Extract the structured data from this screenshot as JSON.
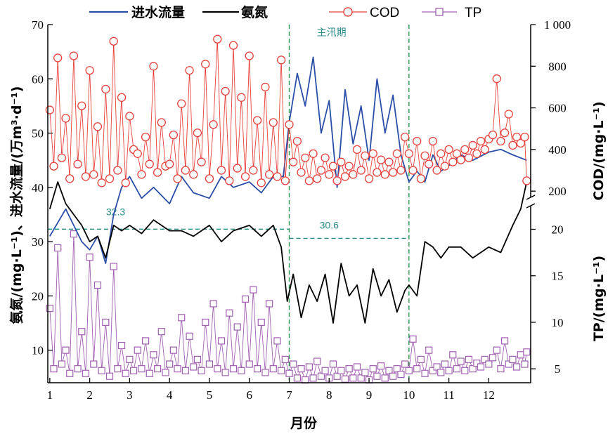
{
  "chart_data": {
    "type": "line",
    "title": "",
    "xlabel": "月份",
    "ylabel_left": "氨氮/(mg·L⁻¹)、进水流量/(万m³·d⁻¹)",
    "ylabel_right_upper": "COD/(mg·L⁻¹)",
    "ylabel_right_lower": "TP/(mg·L⁻¹)",
    "x_ticks": [
      "1",
      "2",
      "3",
      "4",
      "5",
      "6",
      "7",
      "8",
      "9",
      "10",
      "11",
      "12"
    ],
    "xlim": [
      0.95,
      13.05
    ],
    "y_left": {
      "ticks": [
        "10",
        "20",
        "30",
        "40",
        "50",
        "60",
        "70"
      ],
      "ylim": [
        4,
        70
      ]
    },
    "y_right_upper": {
      "ticks": [
        "200",
        "400",
        "600",
        "800",
        "1 000"
      ],
      "ylim": [
        150,
        1000
      ]
    },
    "y_right_lower": {
      "ticks": [
        "5",
        "10",
        "15",
        "20"
      ],
      "ylim": [
        3.5,
        22
      ]
    },
    "legend": [
      {
        "name": "进水流量",
        "color": "#2b4fa8",
        "marker": "line"
      },
      {
        "name": "氨氮",
        "color": "#000000",
        "marker": "line"
      },
      {
        "name": "COD",
        "color": "#e8403a",
        "marker": "circle"
      },
      {
        "name": "TP",
        "color": "#a060b0",
        "marker": "square"
      }
    ],
    "annotations": {
      "flood_label": "主汛期",
      "flood_start": 7,
      "flood_end": 10,
      "avg_before": {
        "label": "32.3",
        "value": 32.3
      },
      "avg_flood": {
        "label": "30.6",
        "value": 30.6
      }
    },
    "series": {
      "inflow": {
        "name": "进水流量",
        "axis": "left",
        "x": [
          1.0,
          1.2,
          1.4,
          1.6,
          1.8,
          2.0,
          2.2,
          2.4,
          2.6,
          2.8,
          3.0,
          3.3,
          3.6,
          4.0,
          4.3,
          4.6,
          5.0,
          5.3,
          5.6,
          6.0,
          6.3,
          6.6,
          6.85,
          7.0,
          7.2,
          7.4,
          7.6,
          7.8,
          8.0,
          8.2,
          8.4,
          8.6,
          8.8,
          9.0,
          9.2,
          9.4,
          9.6,
          9.8,
          10.0,
          10.2,
          10.4,
          10.6,
          10.8,
          11.0,
          11.3,
          11.6,
          12.0,
          12.3,
          12.6,
          12.95
        ],
        "values": [
          31.0,
          33.5,
          36.0,
          33.0,
          30.0,
          28.5,
          31.0,
          26.0,
          35.0,
          40.0,
          42.0,
          38.0,
          40.0,
          37.0,
          42.0,
          39.0,
          38.0,
          42.0,
          40.0,
          41.0,
          39.0,
          42.0,
          42.0,
          52.0,
          61.0,
          55.0,
          64.0,
          50.0,
          56.0,
          40.0,
          58.0,
          48.0,
          55.0,
          45.0,
          60.0,
          50.0,
          57.0,
          46.0,
          41.0,
          43.0,
          41.0,
          46.0,
          43.0,
          44.0,
          46.0,
          45.0,
          46.5,
          47.0,
          46.0,
          45.0
        ]
      },
      "ammonia": {
        "name": "氨氮",
        "axis": "left",
        "x": [
          1.0,
          1.2,
          1.4,
          1.6,
          1.8,
          2.0,
          2.2,
          2.4,
          2.6,
          2.8,
          3.0,
          3.3,
          3.6,
          4.0,
          4.3,
          4.6,
          5.0,
          5.3,
          5.6,
          6.0,
          6.3,
          6.6,
          6.8,
          6.95,
          7.1,
          7.3,
          7.5,
          7.7,
          7.9,
          8.1,
          8.3,
          8.5,
          8.7,
          8.9,
          9.1,
          9.3,
          9.5,
          9.7,
          9.9,
          10.0,
          10.2,
          10.4,
          10.6,
          10.8,
          11.0,
          11.3,
          11.6,
          12.0,
          12.3,
          12.6,
          12.8,
          12.95
        ],
        "values": [
          36.0,
          41.0,
          37.0,
          35.0,
          33.0,
          30.0,
          31.0,
          27.0,
          33.0,
          32.0,
          33.0,
          31.5,
          34.0,
          32.0,
          32.0,
          31.0,
          33.0,
          30.0,
          32.0,
          33.0,
          31.0,
          33.0,
          29.0,
          19.0,
          24.0,
          16.0,
          22.0,
          19.0,
          24.0,
          15.0,
          26.0,
          20.0,
          22.0,
          15.0,
          25.0,
          20.0,
          23.0,
          17.0,
          21.0,
          22.0,
          20.0,
          30.0,
          29.0,
          27.0,
          29.0,
          29.0,
          27.0,
          29.0,
          28.0,
          33.0,
          36.0,
          41.0
        ]
      },
      "cod": {
        "name": "COD",
        "axis": "right_upper",
        "x": [
          1.0,
          1.1,
          1.2,
          1.3,
          1.4,
          1.5,
          1.6,
          1.7,
          1.8,
          1.9,
          2.0,
          2.1,
          2.2,
          2.3,
          2.4,
          2.5,
          2.6,
          2.7,
          2.8,
          2.9,
          3.0,
          3.1,
          3.2,
          3.3,
          3.4,
          3.5,
          3.6,
          3.7,
          3.8,
          3.9,
          4.0,
          4.1,
          4.2,
          4.3,
          4.4,
          4.5,
          4.6,
          4.7,
          4.8,
          4.9,
          5.0,
          5.1,
          5.2,
          5.3,
          5.4,
          5.5,
          5.6,
          5.7,
          5.8,
          5.9,
          6.0,
          6.1,
          6.2,
          6.3,
          6.4,
          6.5,
          6.6,
          6.7,
          6.8,
          6.9,
          7.0,
          7.1,
          7.2,
          7.3,
          7.4,
          7.5,
          7.6,
          7.7,
          7.8,
          7.9,
          8.0,
          8.1,
          8.2,
          8.3,
          8.4,
          8.5,
          8.6,
          8.7,
          8.8,
          8.9,
          9.0,
          9.1,
          9.2,
          9.3,
          9.4,
          9.5,
          9.6,
          9.7,
          9.8,
          9.9,
          10.0,
          10.1,
          10.2,
          10.3,
          10.4,
          10.5,
          10.6,
          10.7,
          10.8,
          10.9,
          11.0,
          11.1,
          11.2,
          11.3,
          11.4,
          11.5,
          11.6,
          11.7,
          11.8,
          11.9,
          12.0,
          12.1,
          12.2,
          12.3,
          12.4,
          12.5,
          12.6,
          12.7,
          12.8,
          12.9,
          12.95
        ],
        "values": [
          590,
          320,
          840,
          360,
          550,
          260,
          850,
          330,
          610,
          270,
          780,
          280,
          510,
          240,
          690,
          260,
          920,
          300,
          650,
          240,
          560,
          400,
          380,
          280,
          460,
          330,
          800,
          290,
          530,
          320,
          330,
          470,
          260,
          620,
          300,
          780,
          280,
          480,
          340,
          810,
          260,
          520,
          930,
          300,
          680,
          250,
          900,
          310,
          650,
          270,
          850,
          300,
          540,
          240,
          700,
          280,
          530,
          270,
          830,
          250,
          520,
          340,
          440,
          290,
          360,
          250,
          380,
          260,
          300,
          360,
          280,
          320,
          250,
          340,
          270,
          320,
          280,
          400,
          300,
          370,
          260,
          380,
          290,
          350,
          280,
          340,
          290,
          380,
          300,
          460,
          380,
          300,
          440,
          260,
          370,
          330,
          440,
          300,
          380,
          320,
          400,
          340,
          380,
          350,
          400,
          360,
          420,
          380,
          440,
          400,
          450,
          470,
          740,
          440,
          480,
          570,
          420,
          460,
          430,
          460,
          250
        ]
      },
      "tp": {
        "name": "TP",
        "axis": "right_lower",
        "x": [
          1.0,
          1.1,
          1.2,
          1.3,
          1.4,
          1.5,
          1.6,
          1.7,
          1.8,
          1.9,
          2.0,
          2.1,
          2.2,
          2.3,
          2.4,
          2.5,
          2.6,
          2.7,
          2.8,
          2.9,
          3.0,
          3.1,
          3.2,
          3.3,
          3.4,
          3.5,
          3.6,
          3.7,
          3.8,
          3.9,
          4.0,
          4.1,
          4.2,
          4.3,
          4.4,
          4.5,
          4.6,
          4.7,
          4.8,
          4.9,
          5.0,
          5.1,
          5.2,
          5.3,
          5.4,
          5.5,
          5.6,
          5.7,
          5.8,
          5.9,
          6.0,
          6.1,
          6.2,
          6.3,
          6.4,
          6.5,
          6.6,
          6.7,
          6.8,
          6.9,
          7.0,
          7.1,
          7.2,
          7.3,
          7.4,
          7.5,
          7.6,
          7.7,
          7.8,
          7.9,
          8.0,
          8.1,
          8.2,
          8.3,
          8.4,
          8.5,
          8.6,
          8.7,
          8.8,
          8.9,
          9.0,
          9.1,
          9.2,
          9.3,
          9.4,
          9.5,
          9.6,
          9.7,
          9.8,
          9.9,
          10.0,
          10.1,
          10.2,
          10.3,
          10.4,
          10.5,
          10.6,
          10.7,
          10.8,
          10.9,
          11.0,
          11.1,
          11.2,
          11.3,
          11.4,
          11.5,
          11.6,
          11.7,
          11.8,
          11.9,
          12.0,
          12.1,
          12.2,
          12.3,
          12.4,
          12.5,
          12.6,
          12.7,
          12.8,
          12.9,
          12.95
        ],
        "values": [
          11.5,
          5.0,
          18.0,
          5.5,
          7.0,
          4.5,
          19.5,
          5.0,
          9.0,
          4.5,
          17.0,
          5.5,
          14.0,
          4.8,
          10.0,
          4.2,
          16.0,
          5.0,
          7.5,
          4.5,
          6.0,
          4.8,
          7.0,
          5.0,
          8.0,
          4.5,
          6.5,
          5.0,
          9.0,
          4.6,
          5.5,
          7.0,
          5.0,
          10.5,
          4.8,
          8.5,
          5.2,
          6.0,
          4.8,
          10.0,
          5.5,
          12.0,
          5.0,
          8.0,
          4.6,
          11.0,
          5.0,
          9.5,
          4.8,
          12.5,
          5.5,
          13.5,
          5.0,
          10.0,
          4.6,
          12.0,
          5.0,
          8.0,
          4.8,
          6.0,
          4.5,
          5.5,
          4.0,
          5.0,
          3.8,
          5.2,
          4.0,
          5.8,
          4.2,
          4.8,
          4.0,
          5.5,
          4.2,
          4.8,
          3.9,
          5.0,
          4.0,
          5.2,
          4.0,
          4.6,
          3.8,
          5.0,
          4.2,
          5.3,
          4.0,
          4.8,
          4.2,
          5.0,
          4.4,
          5.5,
          4.8,
          8.2,
          5.0,
          6.0,
          4.5,
          7.0,
          4.8,
          5.2,
          4.6,
          5.5,
          4.8,
          6.5,
          5.0,
          5.8,
          4.8,
          6.0,
          5.0,
          5.6,
          5.2,
          6.0,
          5.5,
          6.2,
          7.0,
          5.0,
          8.0,
          5.5,
          6.0,
          5.2,
          6.5,
          5.5,
          6.8
        ]
      }
    }
  }
}
